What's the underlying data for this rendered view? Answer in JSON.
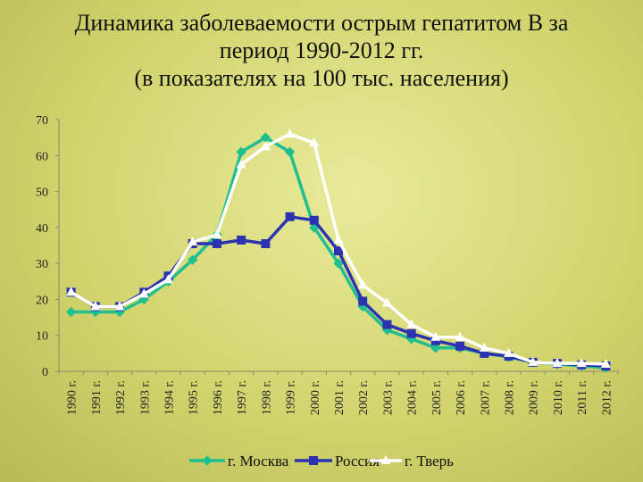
{
  "title_lines": [
    "Динамика заболеваемости острым гепатитом В за",
    "период 1990-2012 гг.",
    "(в показателях на 100 тыс. населения)"
  ],
  "chart_data": {
    "type": "line",
    "categories": [
      "1990 г.",
      "1991 г.",
      "1992 г.",
      "1993 г.",
      "1994 г.",
      "1995 г.",
      "1996 г.",
      "1997 г.",
      "1998 г.",
      "1999 г.",
      "2000 г.",
      "2001 г.",
      "2002 г.",
      "2003 г.",
      "2004 г.",
      "2005 г.",
      "2006 г.",
      "2007 г.",
      "2008 г.",
      "2009 г.",
      "2010 г.",
      "2011 г.",
      "2012 г."
    ],
    "ylim": [
      0,
      70
    ],
    "yticks": [
      0,
      10,
      20,
      30,
      40,
      50,
      60,
      70
    ],
    "grid": false,
    "legend": "bottom",
    "series": [
      {
        "name": "г. Москва",
        "color": "#1fbf8f",
        "marker": "diamond",
        "values": [
          16.5,
          16.5,
          16.5,
          20,
          25,
          31,
          38,
          61,
          65,
          61,
          40,
          30,
          18,
          11.5,
          9,
          6.5,
          6.5,
          5,
          4,
          2.5,
          2,
          1.5,
          1
        ]
      },
      {
        "name": "Россия",
        "color": "#2b33b0",
        "marker": "square",
        "values": [
          22,
          18,
          18,
          22,
          26.5,
          35.5,
          35.5,
          36.5,
          35.5,
          43,
          42,
          33.5,
          19.5,
          13,
          10.5,
          8.5,
          7,
          5,
          4.2,
          2.5,
          2.2,
          1.8,
          1.5
        ]
      },
      {
        "name": "г. Тверь",
        "color": "#ffffff",
        "marker": "triangle",
        "values": [
          22,
          18,
          18,
          21.5,
          25.5,
          36,
          38,
          57.5,
          62.5,
          66,
          63.5,
          36.5,
          24,
          19,
          13,
          9.5,
          9.5,
          6.5,
          5,
          2.5,
          2.2,
          2.2,
          2
        ]
      }
    ]
  }
}
